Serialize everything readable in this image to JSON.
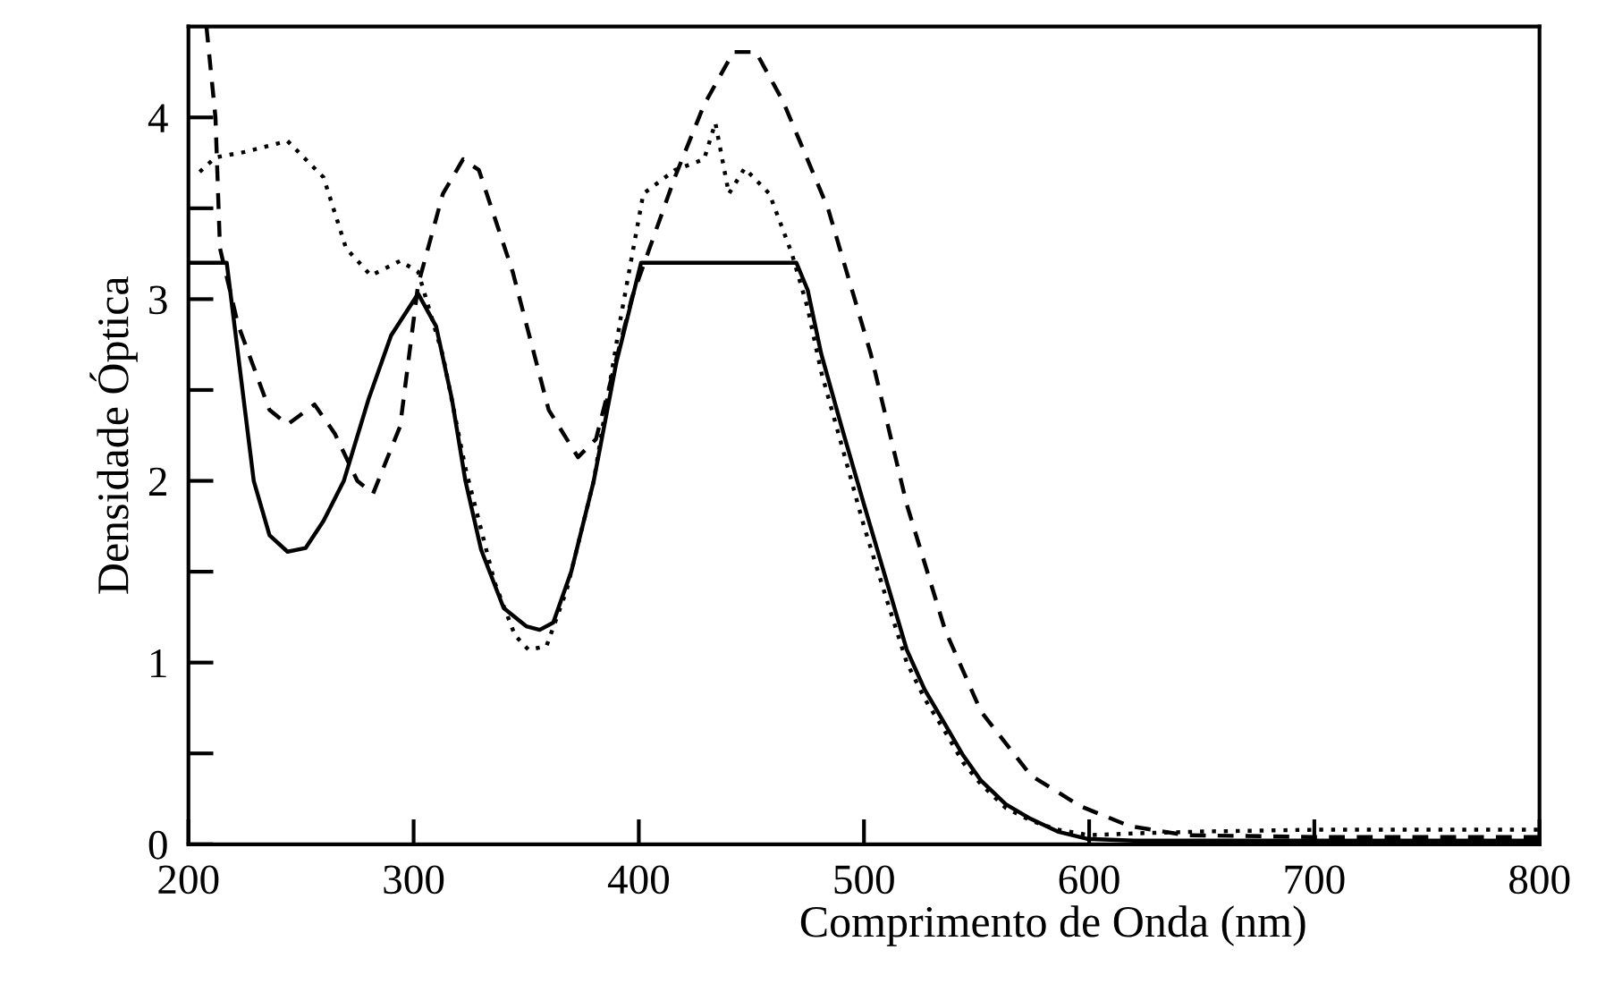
{
  "chart_data": {
    "type": "line",
    "xlabel": "Comprimento de Onda (nm)",
    "ylabel": "Densidade Óptica",
    "xlim": [
      200,
      800
    ],
    "ylim": [
      0,
      4.5
    ],
    "xticks": [
      200,
      300,
      400,
      500,
      600,
      700,
      800
    ],
    "yticks": [
      0,
      {
        "value": 0.5,
        "label": null
      },
      1,
      {
        "value": 1.5,
        "label": null
      },
      2,
      {
        "value": 2.5,
        "label": null
      },
      3,
      {
        "value": 3.5,
        "label": null
      },
      4
    ],
    "grid": false,
    "marker": "none",
    "series": [
      {
        "color": "#000000",
        "line_style": "solid",
        "x": [
          200,
          217,
          222,
          229,
          236,
          244,
          252,
          260,
          269,
          280,
          290,
          302,
          310,
          317,
          323,
          330,
          340,
          350,
          356,
          362,
          370,
          380,
          390,
          401,
          420,
          440,
          460,
          470,
          475,
          481,
          490,
          500,
          510,
          519,
          527,
          536,
          544,
          552,
          563,
          574,
          586,
          599,
          620,
          650,
          700,
          750,
          800
        ],
        "values": [
          3.2,
          3.2,
          2.7,
          2.0,
          1.7,
          1.61,
          1.63,
          1.78,
          2.0,
          2.45,
          2.8,
          3.03,
          2.85,
          2.45,
          2.0,
          1.62,
          1.3,
          1.2,
          1.18,
          1.22,
          1.5,
          2.0,
          2.65,
          3.2,
          3.2,
          3.2,
          3.2,
          3.2,
          3.05,
          2.7,
          2.3,
          1.87,
          1.45,
          1.07,
          0.85,
          0.66,
          0.49,
          0.35,
          0.22,
          0.14,
          0.07,
          0.03,
          0.02,
          0.02,
          0.02,
          0.02,
          0.02
        ]
      },
      {
        "color": "#000000",
        "line_style": "dotted",
        "x": [
          205,
          212,
          225,
          244,
          260,
          270,
          281,
          294,
          302,
          313,
          323,
          336,
          345,
          351,
          359,
          368,
          380,
          392,
          402,
          416,
          429,
          434,
          440,
          447,
          458,
          468,
          475,
          481,
          490,
          500,
          510,
          519,
          527,
          536,
          544,
          552,
          563,
          574,
          586,
          600,
          620,
          650,
          700,
          750,
          800
        ],
        "values": [
          3.7,
          3.78,
          3.81,
          3.87,
          3.67,
          3.28,
          3.13,
          3.21,
          3.15,
          2.69,
          2.07,
          1.44,
          1.15,
          1.07,
          1.09,
          1.4,
          2.0,
          2.9,
          3.58,
          3.71,
          3.77,
          3.97,
          3.58,
          3.72,
          3.58,
          3.25,
          2.95,
          2.6,
          2.2,
          1.75,
          1.35,
          1.0,
          0.8,
          0.62,
          0.45,
          0.33,
          0.2,
          0.13,
          0.08,
          0.05,
          0.06,
          0.07,
          0.08,
          0.08,
          0.08
        ]
      },
      {
        "color": "#000000",
        "line_style": "dashed",
        "x": [
          208,
          212,
          214,
          222,
          236,
          244,
          256,
          265,
          275,
          282,
          294,
          302,
          313,
          322,
          329,
          344,
          360,
          373,
          381,
          397,
          416,
          429,
          442,
          452,
          464,
          484,
          503,
          519,
          536,
          552,
          574,
          596,
          618,
          643,
          700,
          750,
          800
        ],
        "values": [
          4.5,
          4.0,
          3.28,
          2.86,
          2.39,
          2.31,
          2.42,
          2.26,
          2.0,
          1.93,
          2.3,
          3.08,
          3.58,
          3.77,
          3.71,
          3.15,
          2.39,
          2.13,
          2.23,
          3.01,
          3.67,
          4.07,
          4.36,
          4.36,
          4.09,
          3.5,
          2.7,
          1.87,
          1.18,
          0.73,
          0.38,
          0.21,
          0.1,
          0.05,
          0.04,
          0.04,
          0.04
        ]
      }
    ]
  }
}
